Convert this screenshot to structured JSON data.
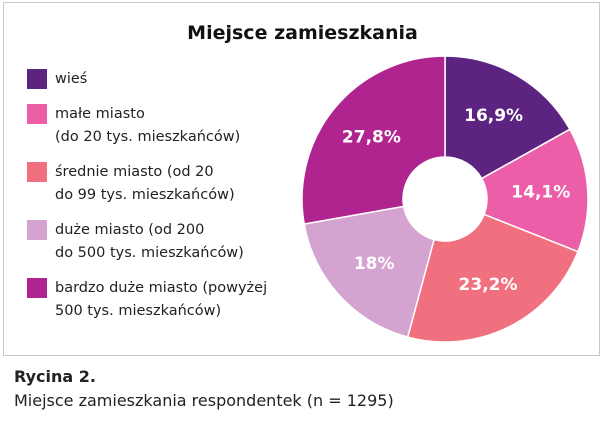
{
  "chart_data": {
    "type": "donut",
    "title": "Miejsce zamieszkania",
    "categories": [
      "wieś",
      "małe miasto\n(do 20 tys. mieszkańców)",
      "średnie miasto (od 20\ndo 99 tys. mieszkańców)",
      "duże miasto (od 200\ndo 500 tys. mieszkańców)",
      "bardzo duże miasto (powyżej\n500 tys. mieszkańców)"
    ],
    "values": [
      16.9,
      14.1,
      23.2,
      18,
      27.8
    ],
    "value_labels": [
      "16,9%",
      "14,1%",
      "23,2%",
      "18%",
      "27,8%"
    ],
    "colors": [
      "#5c2380",
      "#ec5fa8",
      "#f0707f",
      "#d4a3cf",
      "#b0248f"
    ],
    "legend": "left"
  },
  "figure": {
    "label": "Rycina 2.",
    "caption": "Miejsce zamieszkania respondentek (n = 1295)"
  }
}
